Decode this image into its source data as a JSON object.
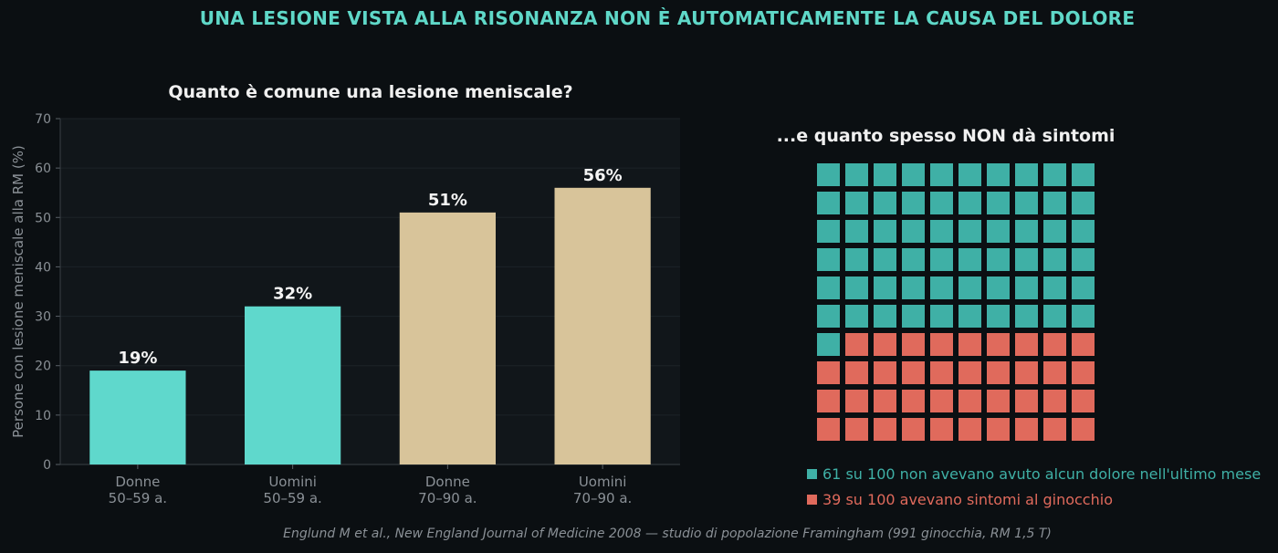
{
  "title": "UNA LESIONE VISTA ALLA RISONANZA NON È AUTOMATICAMENTE LA CAUSA DEL DOLORE",
  "chart_data": [
    {
      "type": "bar",
      "title": "Quanto è comune una lesione meniscale?",
      "ylabel": "Persone con lesione meniscale alla RM (%)",
      "xlabel": "",
      "ylim": [
        0,
        70
      ],
      "yticks": [
        0,
        10,
        20,
        30,
        40,
        50,
        60,
        70
      ],
      "categories": [
        [
          "Donne",
          "50–59 a."
        ],
        [
          "Uomini",
          "50–59 a."
        ],
        [
          "Donne",
          "70–90 a."
        ],
        [
          "Uomini",
          "70–90 a."
        ]
      ],
      "values": [
        19,
        32,
        51,
        56
      ],
      "data_labels": [
        "19%",
        "32%",
        "51%",
        "56%"
      ],
      "bar_colors": [
        "#5fd8cc",
        "#5fd8cc",
        "#d8c49a",
        "#d8c49a"
      ],
      "grid": true
    },
    {
      "type": "waffle",
      "title": "...e quanto spesso NON dà sintomi",
      "total": 100,
      "rows": 10,
      "cols": 10,
      "series": [
        {
          "value": 61,
          "color": "#3fb0a6",
          "label": "61 su 100 non avevano avuto alcun dolore nell'ultimo mese"
        },
        {
          "value": 39,
          "color": "#e06a5c",
          "label": "39 su 100 avevano sintomi al ginocchio"
        }
      ]
    }
  ],
  "source": "Englund M et al., New England Journal of Medicine 2008 — studio di popolazione Framingham (991 ginocchia, RM 1,5 T)"
}
